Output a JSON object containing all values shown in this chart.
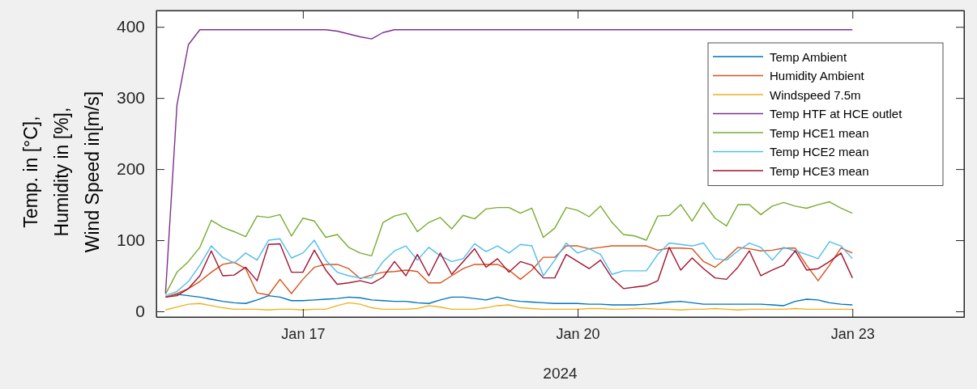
{
  "chart_data": {
    "type": "line",
    "xlabel": "2024",
    "ylabel": "Temp. in [°C],\nHumidity in [%],\nWind Speed in[m/s]",
    "xlim": [
      "2024-01-15T09:36",
      "2024-01-24T05:15"
    ],
    "xticks": [
      {
        "value": "2024-01-17",
        "label": "Jan 17"
      },
      {
        "value": "2024-01-20",
        "label": "Jan 20"
      },
      {
        "value": "2024-01-23",
        "label": "Jan 23"
      }
    ],
    "ylim": [
      -8,
      423
    ],
    "yticks": [
      0,
      100,
      200,
      300,
      400
    ],
    "grid": false,
    "legend": "top right",
    "line_style": "solid",
    "marker": "none",
    "x": [
      "2024-01-15T12:00",
      "2024-01-15T15:00",
      "2024-01-15T18:00",
      "2024-01-15T21:00",
      "2024-01-16T00:00",
      "2024-01-16T03:00",
      "2024-01-16T06:00",
      "2024-01-16T09:00",
      "2024-01-16T12:00",
      "2024-01-16T15:00",
      "2024-01-16T18:00",
      "2024-01-16T21:00",
      "2024-01-17T00:00",
      "2024-01-17T03:00",
      "2024-01-17T06:00",
      "2024-01-17T09:00",
      "2024-01-17T12:00",
      "2024-01-17T15:00",
      "2024-01-17T18:00",
      "2024-01-17T21:00",
      "2024-01-18T00:00",
      "2024-01-18T03:00",
      "2024-01-18T06:00",
      "2024-01-18T09:00",
      "2024-01-18T12:00",
      "2024-01-18T15:00",
      "2024-01-18T18:00",
      "2024-01-18T21:00",
      "2024-01-19T00:00",
      "2024-01-19T03:00",
      "2024-01-19T06:00",
      "2024-01-19T09:00",
      "2024-01-19T12:00",
      "2024-01-19T15:00",
      "2024-01-19T18:00",
      "2024-01-19T21:00",
      "2024-01-20T00:00",
      "2024-01-20T03:00",
      "2024-01-20T06:00",
      "2024-01-20T09:00",
      "2024-01-20T12:00",
      "2024-01-20T15:00",
      "2024-01-20T18:00",
      "2024-01-20T21:00",
      "2024-01-21T00:00",
      "2024-01-21T03:00",
      "2024-01-21T06:00",
      "2024-01-21T09:00",
      "2024-01-21T12:00",
      "2024-01-21T15:00",
      "2024-01-21T18:00",
      "2024-01-21T21:00",
      "2024-01-22T00:00",
      "2024-01-22T03:00",
      "2024-01-22T06:00",
      "2024-01-22T09:00",
      "2024-01-22T12:00",
      "2024-01-22T15:00",
      "2024-01-22T18:00",
      "2024-01-22T21:00",
      "2024-01-23T00:00"
    ],
    "series": [
      {
        "name": "Temp Ambient",
        "color": "#0072bd",
        "values": [
          20,
          24,
          22,
          20,
          17,
          14,
          12,
          11,
          16,
          22,
          20,
          15,
          15,
          16,
          17,
          18,
          20,
          19,
          16,
          15,
          14,
          14,
          12,
          11,
          16,
          20,
          20,
          18,
          16,
          20,
          16,
          14,
          13,
          12,
          11,
          11,
          11,
          10,
          10,
          9,
          9,
          9,
          10,
          11,
          13,
          14,
          12,
          10,
          10,
          10,
          10,
          10,
          10,
          9,
          8,
          14,
          17,
          16,
          12,
          10,
          9
        ]
      },
      {
        "name": "Humidity Ambient",
        "color": "#d95319",
        "values": [
          20,
          25,
          32,
          42,
          55,
          66,
          69,
          60,
          26,
          23,
          45,
          25,
          45,
          62,
          66,
          66,
          60,
          46,
          51,
          55,
          56,
          58,
          56,
          40,
          40,
          50,
          60,
          66,
          66,
          66,
          58,
          45,
          58,
          76,
          76,
          92,
          92,
          88,
          90,
          92,
          92,
          92,
          92,
          86,
          89,
          89,
          88,
          70,
          62,
          75,
          90,
          88,
          85,
          86,
          89,
          89,
          65,
          43,
          65,
          89,
          82
        ]
      },
      {
        "name": "Windspeed 7.5m",
        "color": "#edb120",
        "values": [
          2,
          6,
          10,
          11,
          8,
          5,
          3,
          3,
          3,
          2,
          3,
          3,
          2,
          3,
          3,
          8,
          12,
          10,
          5,
          3,
          3,
          3,
          4,
          8,
          6,
          3,
          3,
          3,
          5,
          8,
          9,
          5,
          4,
          3,
          3,
          3,
          3,
          4,
          4,
          3,
          3,
          4,
          4,
          3,
          3,
          2,
          3,
          3,
          4,
          3,
          2,
          3,
          3,
          3,
          3,
          4,
          3,
          3,
          3,
          3,
          3
        ]
      },
      {
        "name": "Temp HTF at HCE outlet",
        "color": "#7e2f8e",
        "values": [
          25,
          290,
          375,
          396,
          396,
          396,
          396,
          396,
          396,
          396,
          396,
          396,
          396,
          396,
          396,
          394,
          390,
          386,
          383,
          392,
          396,
          396,
          396,
          396,
          396,
          396,
          396,
          396,
          396,
          396,
          396,
          396,
          396,
          396,
          396,
          396,
          396,
          396,
          396,
          396,
          396,
          396,
          396,
          396,
          396,
          396,
          396,
          396,
          396,
          396,
          396,
          396,
          396,
          396,
          396,
          396,
          396,
          396,
          396,
          396,
          396
        ]
      },
      {
        "name": "Temp HCE1 mean",
        "color": "#77ac30",
        "values": [
          24,
          55,
          70,
          90,
          128,
          118,
          112,
          105,
          134,
          132,
          136,
          106,
          131,
          127,
          104,
          108,
          90,
          82,
          78,
          125,
          134,
          138,
          112,
          125,
          132,
          116,
          135,
          130,
          144,
          146,
          146,
          138,
          145,
          104,
          117,
          146,
          142,
          133,
          148,
          125,
          108,
          106,
          100,
          134,
          135,
          150,
          127,
          153,
          131,
          120,
          150,
          150,
          136,
          148,
          153,
          148,
          145,
          150,
          154,
          145,
          138
        ]
      },
      {
        "name": "Temp HCE2 mean",
        "color": "#4dbeee",
        "values": [
          22,
          28,
          42,
          65,
          92,
          76,
          68,
          82,
          72,
          100,
          102,
          75,
          82,
          100,
          72,
          55,
          50,
          47,
          47,
          70,
          85,
          92,
          72,
          90,
          78,
          70,
          74,
          95,
          84,
          92,
          82,
          94,
          92,
          50,
          72,
          96,
          82,
          88,
          80,
          52,
          57,
          57,
          57,
          80,
          96,
          94,
          92,
          96,
          74,
          72,
          85,
          96,
          90,
          72,
          90,
          85,
          80,
          74,
          98,
          92,
          74
        ]
      },
      {
        "name": "Temp HCE3 mean",
        "color": "#a2142f",
        "values": [
          20,
          22,
          32,
          50,
          85,
          50,
          51,
          62,
          43,
          94,
          95,
          55,
          55,
          86,
          58,
          38,
          40,
          43,
          39,
          48,
          70,
          50,
          80,
          50,
          82,
          52,
          70,
          88,
          62,
          74,
          55,
          70,
          65,
          47,
          47,
          80,
          70,
          60,
          72,
          47,
          32,
          34,
          36,
          43,
          90,
          58,
          75,
          60,
          47,
          45,
          62,
          85,
          50,
          58,
          65,
          85,
          58,
          60,
          70,
          82,
          47
        ]
      }
    ]
  }
}
